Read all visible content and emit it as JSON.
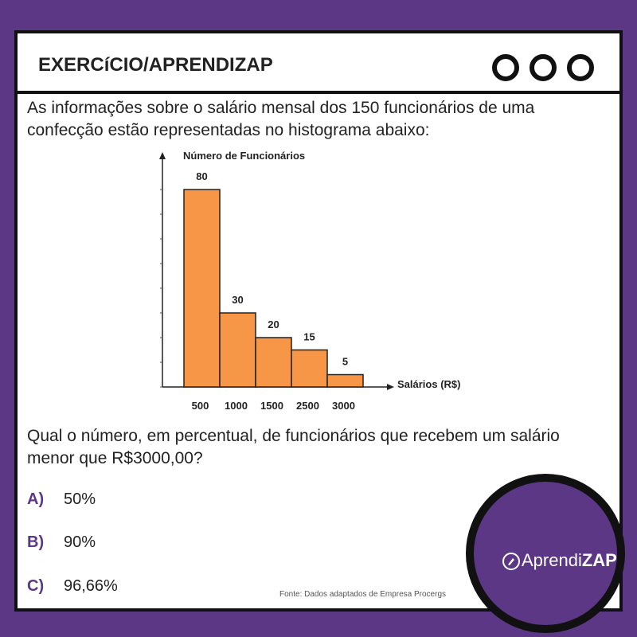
{
  "header": {
    "title": "EXERCíCIO/APRENDIZAP"
  },
  "intro": " As informações sobre o salário mensal dos 150 funcionários de uma confecção estão representadas no histograma abaixo:",
  "chart_data": {
    "type": "bar",
    "y_label": "Número de Funcionários",
    "x_label": "Salários (R$)",
    "categories": [
      "500",
      "1000",
      "1500",
      "2500",
      "3000"
    ],
    "values": [
      80,
      30,
      20,
      15,
      5
    ],
    "color": "#f79646",
    "ylim": [
      0,
      90
    ],
    "yticks": [
      0,
      10,
      20,
      30,
      40,
      50,
      60,
      70,
      80
    ]
  },
  "question": "Qual o número, em percentual, de funcionários que recebem um salário menor que R$3000,00?",
  "options": [
    {
      "letter": "A)",
      "text": "50%"
    },
    {
      "letter": "B)",
      "text": "90%"
    },
    {
      "letter": "C)",
      "text": "96,66%"
    }
  ],
  "source": "Fonte: Dados adaptados de Empresa Procergs",
  "brand": {
    "name": "Aprendi",
    "bold": "ZAP"
  }
}
